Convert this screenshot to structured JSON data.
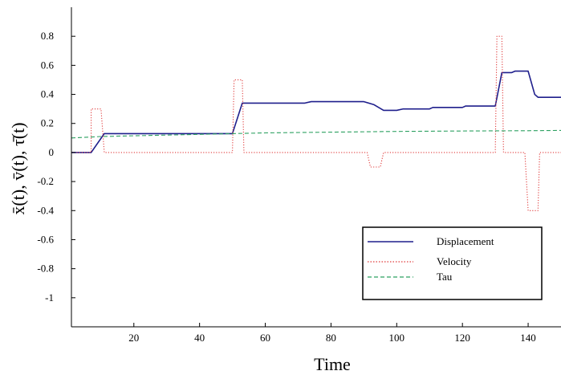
{
  "chart_data": {
    "type": "line",
    "xlabel": "Time",
    "ylabel": "x̄(t), v̄(t), τ̄(t)",
    "xlim": [
      1,
      150
    ],
    "ylim": [
      -1.2,
      1.0
    ],
    "xticks": [
      20,
      40,
      60,
      80,
      100,
      120,
      140
    ],
    "yticks": [
      0.8,
      0.6,
      0.4,
      0.2,
      0,
      -0.2,
      -0.4,
      -0.6,
      -0.8,
      -1
    ],
    "xtick_labels": [
      "20",
      "40",
      "60",
      "80",
      "100",
      "120",
      "140"
    ],
    "ytick_labels": [
      "0.8",
      "0.6",
      "0.4",
      "0.2",
      "0",
      "-0.2",
      "-0.4",
      "-0.6",
      "-0.8",
      "-1"
    ],
    "legend_position": "lower-right",
    "series": [
      {
        "name": "Displacement",
        "color": "#1f1f8c",
        "style": "solid",
        "points": [
          [
            1,
            0.0
          ],
          [
            7,
            0.0
          ],
          [
            11,
            0.13
          ],
          [
            20,
            0.13
          ],
          [
            40,
            0.13
          ],
          [
            50,
            0.13
          ],
          [
            53,
            0.34
          ],
          [
            60,
            0.34
          ],
          [
            72,
            0.34
          ],
          [
            74,
            0.35
          ],
          [
            90,
            0.35
          ],
          [
            93,
            0.33
          ],
          [
            96,
            0.29
          ],
          [
            100,
            0.29
          ],
          [
            102,
            0.3
          ],
          [
            110,
            0.3
          ],
          [
            111,
            0.31
          ],
          [
            120,
            0.31
          ],
          [
            121,
            0.32
          ],
          [
            130,
            0.32
          ],
          [
            132,
            0.55
          ],
          [
            135,
            0.55
          ],
          [
            136,
            0.56
          ],
          [
            140,
            0.56
          ],
          [
            142,
            0.4
          ],
          [
            143,
            0.38
          ],
          [
            150,
            0.38
          ]
        ]
      },
      {
        "name": "Velocity",
        "color": "#e03c3c",
        "style": "dotted",
        "points": [
          [
            1,
            0.0
          ],
          [
            7,
            0.0
          ],
          [
            7,
            0.3
          ],
          [
            10,
            0.3
          ],
          [
            11,
            0.0
          ],
          [
            50,
            0.0
          ],
          [
            50.5,
            0.5
          ],
          [
            53,
            0.5
          ],
          [
            53.5,
            0.0
          ],
          [
            91,
            0.0
          ],
          [
            92,
            -0.1
          ],
          [
            95,
            -0.1
          ],
          [
            96,
            0.0
          ],
          [
            130,
            0.0
          ],
          [
            130.5,
            0.8
          ],
          [
            132,
            0.8
          ],
          [
            132.5,
            0.0
          ],
          [
            139,
            0.0
          ],
          [
            140,
            -0.4
          ],
          [
            143,
            -0.4
          ],
          [
            143.5,
            0.0
          ],
          [
            150,
            0.0
          ]
        ]
      },
      {
        "name": "Tau",
        "color": "#2ca060",
        "style": "dashed",
        "points": [
          [
            1,
            0.1
          ],
          [
            10,
            0.11
          ],
          [
            20,
            0.115
          ],
          [
            40,
            0.125
          ],
          [
            60,
            0.135
          ],
          [
            80,
            0.14
          ],
          [
            100,
            0.145
          ],
          [
            120,
            0.148
          ],
          [
            140,
            0.15
          ],
          [
            150,
            0.152
          ]
        ]
      }
    ]
  }
}
